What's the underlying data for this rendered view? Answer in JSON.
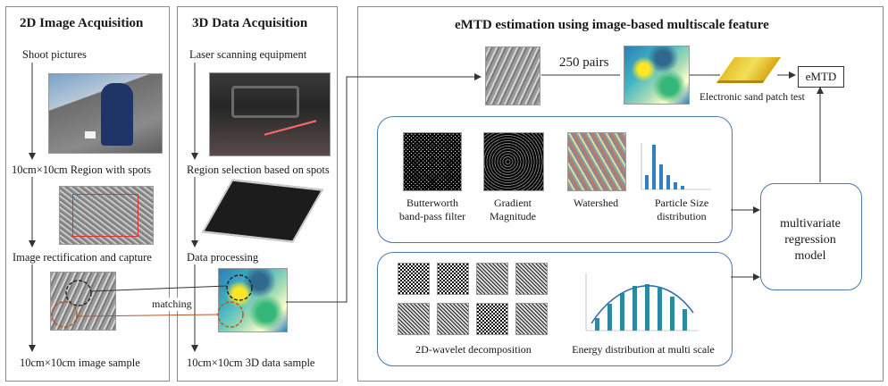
{
  "panel_2d": {
    "title": "2D Image Acquisition",
    "step1": "Shoot pictures",
    "step2": "10cm×10cm Region with spots",
    "step3": "Image rectification and capture",
    "step4": "10cm×10cm image sample"
  },
  "panel_3d": {
    "title": "3D Data Acquisition",
    "step1": "Laser scanning equipment",
    "step2": "Region selection based on spots",
    "step3": "Data processing",
    "step4": "10cm×10cm 3D data sample"
  },
  "matching_label": "matching",
  "panel_emtd": {
    "title": "eMTD estimation using image-based multiscale feature",
    "pairs_label": "250 pairs",
    "sand_patch_label": "Electronic sand patch test",
    "emtd_box": "eMTD",
    "features": {
      "butterworth": [
        "Butterworth",
        "band-pass filter"
      ],
      "gradient": [
        "Gradient",
        "Magnitude"
      ],
      "watershed": "Watershed",
      "particle": [
        "Particle Size",
        "distribution"
      ]
    },
    "wavelet_label": "2D-wavelet decomposition",
    "energy_label": "Energy distribution at multi scale",
    "model": [
      "multivariate",
      "regression",
      "model"
    ]
  },
  "colors": {
    "panel_border": "#8a8a8a",
    "rounded_border": "#4a78b0",
    "bar_teal": "#2b8a9e",
    "curve_blue": "#2f6fb5"
  }
}
